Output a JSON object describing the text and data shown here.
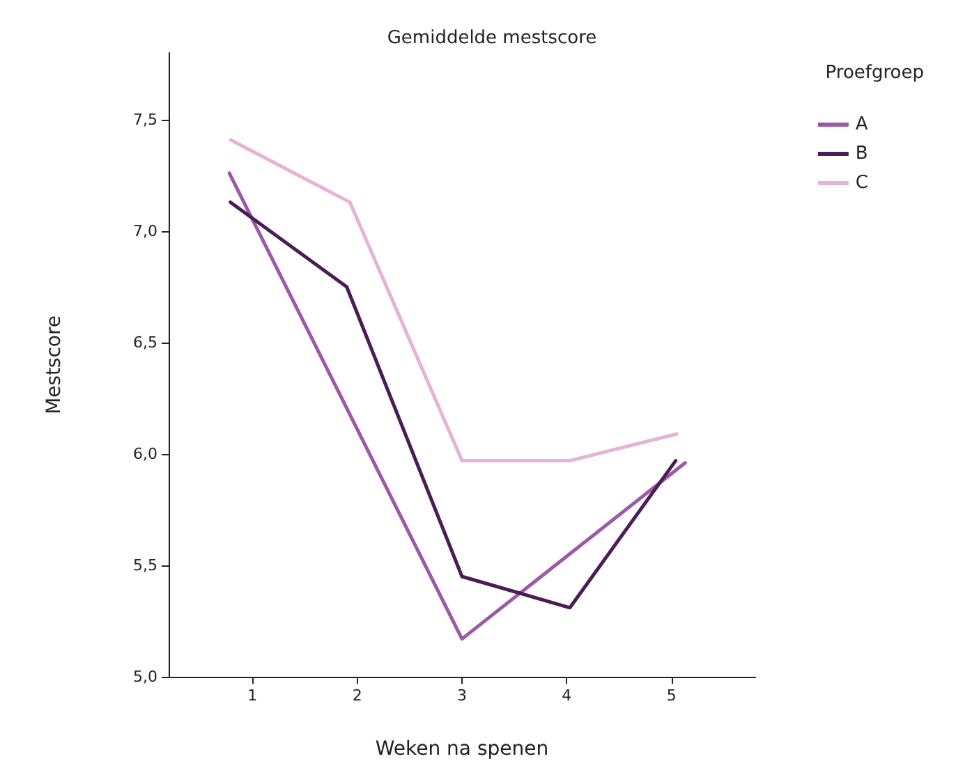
{
  "chart_data": {
    "type": "line",
    "title": "Gemiddelde mestscore",
    "xlabel": "Weken na spenen",
    "ylabel": "Mestscore",
    "legend_title": "Proefgroep",
    "series": [
      {
        "name": "A",
        "color": "#9b59a8",
        "x": [
          0.78,
          3.0,
          5.13
        ],
        "values": [
          7.26,
          5.17,
          5.96
        ]
      },
      {
        "name": "B",
        "color": "#4b1c55",
        "x": [
          0.79,
          1.9,
          3.0,
          4.03,
          5.04
        ],
        "values": [
          7.13,
          6.75,
          5.45,
          5.31,
          5.97
        ]
      },
      {
        "name": "C",
        "color": "#e6b3d4",
        "x": [
          0.79,
          1.93,
          3.0,
          4.03,
          5.05
        ],
        "values": [
          7.41,
          7.13,
          5.97,
          5.97,
          6.09
        ]
      }
    ],
    "xlim": [
      0.2,
      5.8
    ],
    "xticks": [
      1,
      2,
      3,
      4,
      5
    ],
    "ylim": [
      5.0,
      7.8
    ],
    "yticks": [
      {
        "value": 5.0,
        "label": "5,0"
      },
      {
        "value": 5.5,
        "label": "5,5"
      },
      {
        "value": 6.0,
        "label": "6,0"
      },
      {
        "value": 6.5,
        "label": "6,5"
      },
      {
        "value": 7.0,
        "label": "7,0"
      },
      {
        "value": 7.5,
        "label": "7,5"
      }
    ],
    "grid": false,
    "legend": "right",
    "marker": "none",
    "line_style": "solid"
  }
}
